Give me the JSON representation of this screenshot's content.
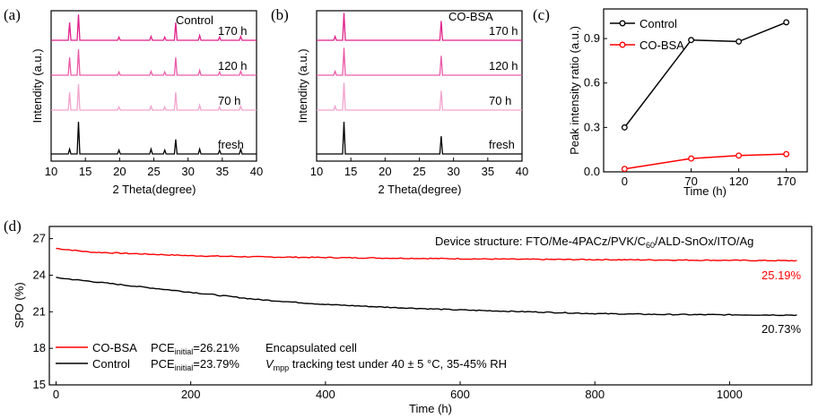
{
  "panels": {
    "a": {
      "label": "(a)",
      "legend": "Control",
      "xlabel": "2 Theta(degree)",
      "ylabel": "Intendity (a.u.)",
      "xticks": [
        "10",
        "15",
        "20",
        "25",
        "30",
        "35",
        "40"
      ],
      "traces": [
        {
          "label": "170 h",
          "color": "#e0218a"
        },
        {
          "label": "120 h",
          "color": "#ea5aa8"
        },
        {
          "label": "70 h",
          "color": "#f2a2cc"
        },
        {
          "label": "fresh",
          "color": "#000000"
        }
      ]
    },
    "b": {
      "label": "(b)",
      "legend": "CO-BSA",
      "xlabel": "2 Theta(degree)",
      "ylabel": "Intendity (a.u.)",
      "xticks": [
        "10",
        "15",
        "20",
        "25",
        "30",
        "35",
        "40"
      ],
      "traces": [
        {
          "label": "170 h",
          "color": "#e0218a"
        },
        {
          "label": "120 h",
          "color": "#ea5aa8"
        },
        {
          "label": "70 h",
          "color": "#f2a2cc"
        },
        {
          "label": "fresh",
          "color": "#000000"
        }
      ]
    },
    "c": {
      "label": "(c)"
    },
    "d": {
      "label": "(d)",
      "device_structure": "Device structure: FTO/Me-4PACz/PVK/C60/ALD-SnOx/ITO/Ag",
      "legend": [
        {
          "name": "CO-BSA",
          "pce": "PCEinitial=26.21%",
          "note": "Encapsulated cell"
        },
        {
          "name": "Control",
          "pce": "PCEinitial=23.79%",
          "note": "Vmpp tracking test under 40 ± 5 °C, 35-45% RH"
        }
      ],
      "end_labels": [
        "25.19%",
        "20.73%"
      ]
    }
  },
  "chart_data": [
    {
      "type": "line",
      "panel": "a",
      "x_range": [
        10,
        40
      ],
      "xlabel": "2 Theta(degree)",
      "ylabel": "Intendity (a.u.)",
      "legend": "Control",
      "series": [
        {
          "name": "170 h",
          "peaks": [
            [
              12.7,
              0.55
            ],
            [
              14.0,
              0.8
            ],
            [
              19.9,
              0.1
            ],
            [
              24.6,
              0.12
            ],
            [
              26.6,
              0.1
            ],
            [
              28.2,
              0.55
            ],
            [
              31.7,
              0.15
            ],
            [
              34.6,
              0.1
            ],
            [
              37.7,
              0.12
            ]
          ]
        },
        {
          "name": "120 h",
          "peaks": [
            [
              12.7,
              0.55
            ],
            [
              14.0,
              0.8
            ],
            [
              19.9,
              0.1
            ],
            [
              24.6,
              0.12
            ],
            [
              26.6,
              0.1
            ],
            [
              28.2,
              0.55
            ],
            [
              31.7,
              0.15
            ],
            [
              34.6,
              0.1
            ],
            [
              37.7,
              0.12
            ]
          ]
        },
        {
          "name": "70 h",
          "peaks": [
            [
              12.7,
              0.55
            ],
            [
              14.0,
              0.8
            ],
            [
              19.9,
              0.1
            ],
            [
              24.6,
              0.12
            ],
            [
              26.6,
              0.1
            ],
            [
              28.2,
              0.55
            ],
            [
              31.7,
              0.15
            ],
            [
              34.6,
              0.1
            ],
            [
              37.7,
              0.12
            ]
          ]
        },
        {
          "name": "fresh",
          "peaks": [
            [
              12.7,
              0.15
            ],
            [
              14.0,
              1.0
            ],
            [
              19.9,
              0.12
            ],
            [
              24.6,
              0.15
            ],
            [
              26.6,
              0.12
            ],
            [
              28.2,
              0.45
            ],
            [
              31.7,
              0.15
            ],
            [
              34.6,
              0.12
            ],
            [
              37.7,
              0.15
            ]
          ]
        }
      ]
    },
    {
      "type": "line",
      "panel": "b",
      "x_range": [
        10,
        40
      ],
      "xlabel": "2 Theta(degree)",
      "ylabel": "Intendity (a.u.)",
      "legend": "CO-BSA",
      "series": [
        {
          "name": "170 h",
          "peaks": [
            [
              12.7,
              0.12
            ],
            [
              14.0,
              0.85
            ],
            [
              28.2,
              0.6
            ]
          ]
        },
        {
          "name": "120 h",
          "peaks": [
            [
              12.7,
              0.12
            ],
            [
              14.0,
              0.85
            ],
            [
              28.2,
              0.6
            ]
          ]
        },
        {
          "name": "70 h",
          "peaks": [
            [
              12.7,
              0.12
            ],
            [
              14.0,
              0.85
            ],
            [
              28.2,
              0.6
            ]
          ]
        },
        {
          "name": "fresh",
          "peaks": [
            [
              14.0,
              1.0
            ],
            [
              28.2,
              0.55
            ]
          ]
        }
      ]
    },
    {
      "type": "line",
      "panel": "c",
      "x": [
        0,
        70,
        120,
        170
      ],
      "xticks": [
        "0",
        "70",
        "120",
        "170"
      ],
      "xlabel": "Time (h)",
      "ylabel": "Peak intensity ratio (a.u.)",
      "ylim": [
        0,
        1.1
      ],
      "yticks": [
        "0.0",
        "0.3",
        "0.6",
        "0.9"
      ],
      "legend_position": "top-left",
      "series": [
        {
          "name": "Control",
          "color": "#000000",
          "values": [
            0.3,
            0.89,
            0.88,
            1.01
          ]
        },
        {
          "name": "CO-BSA",
          "color": "#ff0000",
          "values": [
            0.02,
            0.09,
            0.11,
            0.12
          ]
        }
      ]
    },
    {
      "type": "line",
      "panel": "d",
      "xlabel": "Time (h)",
      "ylabel": "SPO (%)",
      "xlim": [
        0,
        1100
      ],
      "ylim": [
        15,
        28
      ],
      "xticks": [
        "0",
        "200",
        "400",
        "600",
        "800",
        "1000"
      ],
      "yticks": [
        "15",
        "18",
        "21",
        "24",
        "27"
      ],
      "legend_position": "bottom-left",
      "series": [
        {
          "name": "CO-BSA",
          "color": "#ff0000",
          "x": [
            0,
            50,
            100,
            200,
            300,
            400,
            500,
            600,
            700,
            800,
            900,
            1000,
            1100
          ],
          "values": [
            26.2,
            25.9,
            25.8,
            25.6,
            25.5,
            25.45,
            25.4,
            25.35,
            25.3,
            25.28,
            25.25,
            25.22,
            25.19
          ]
        },
        {
          "name": "Control",
          "color": "#000000",
          "x": [
            0,
            50,
            100,
            200,
            300,
            400,
            500,
            600,
            700,
            800,
            900,
            1000,
            1100
          ],
          "values": [
            23.8,
            23.5,
            23.2,
            22.6,
            22.0,
            21.6,
            21.35,
            21.15,
            21.0,
            20.85,
            20.78,
            20.75,
            20.73
          ]
        }
      ]
    }
  ]
}
